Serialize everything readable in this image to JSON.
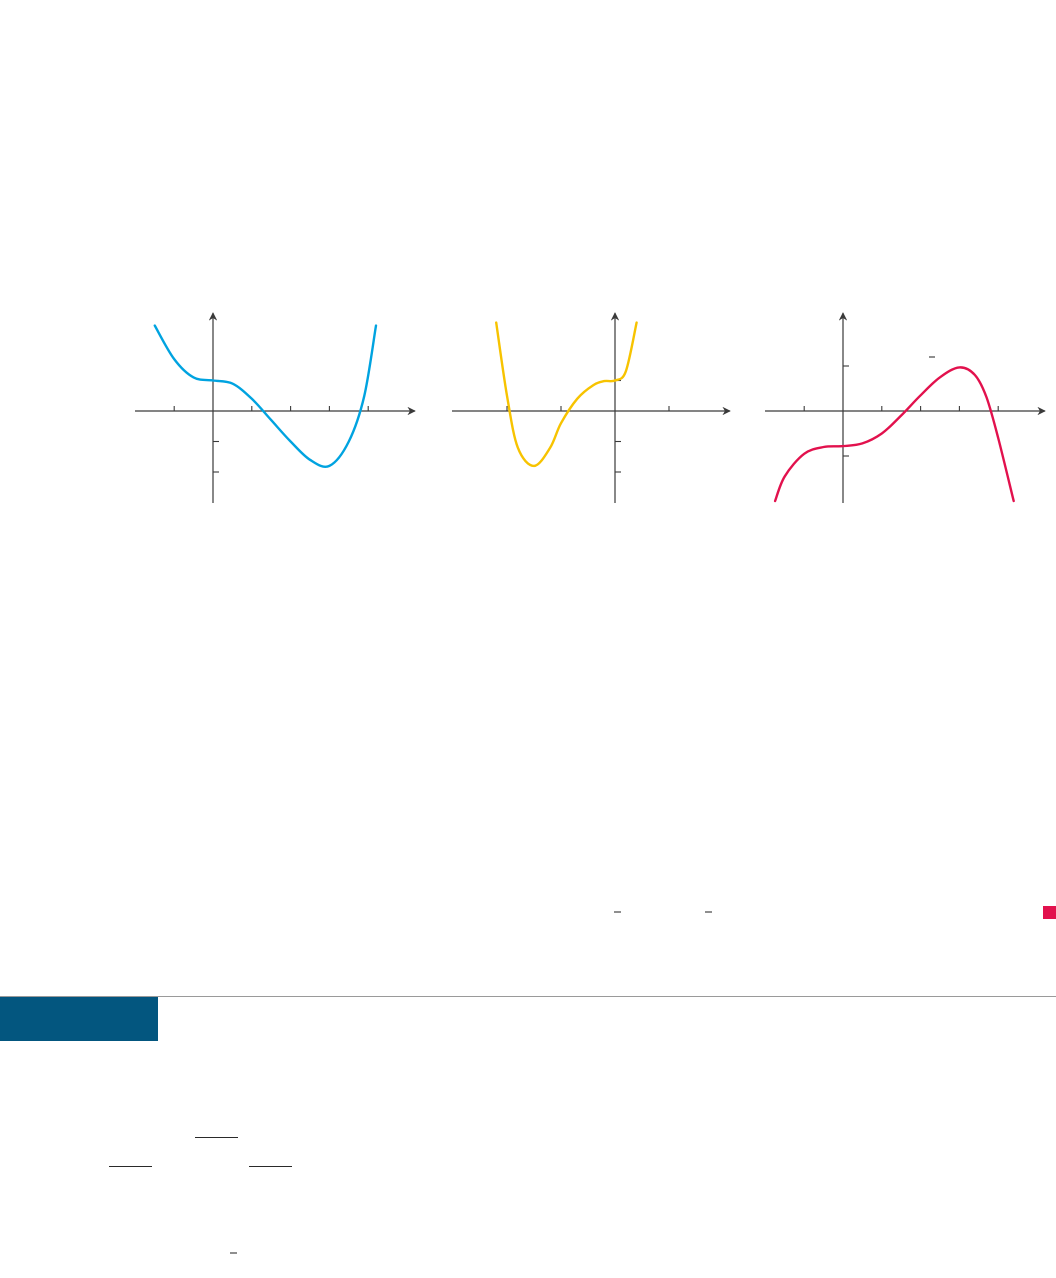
{
  "chart_data": [
    {
      "type": "line",
      "title": "",
      "xlabel": "",
      "ylabel": "",
      "x_ticks": [
        -1,
        1,
        2,
        3,
        4
      ],
      "y_ticks": [
        -2,
        -1,
        1
      ],
      "xlim": [
        -2,
        5
      ],
      "ylim": [
        -3,
        2
      ],
      "grid": false,
      "series": [
        {
          "color": "#00a3e0",
          "x": [
            -1.5,
            -1,
            -0.5,
            0,
            0.5,
            1,
            1.5,
            2,
            2.5,
            3,
            3.5,
            3.9,
            4.2
          ],
          "y": [
            2.8,
            1.7,
            1.1,
            1.0,
            0.9,
            0.4,
            -0.3,
            -1.0,
            -1.6,
            -1.8,
            -1.0,
            0.5,
            2.8
          ]
        }
      ]
    },
    {
      "type": "line",
      "title": "",
      "xlabel": "",
      "ylabel": "",
      "x_ticks": [
        -2,
        -1,
        1
      ],
      "y_ticks": [
        -2,
        -1,
        1
      ],
      "xlim": [
        -3,
        2
      ],
      "ylim": [
        -3,
        2
      ],
      "grid": false,
      "series": [
        {
          "color": "#f7c300",
          "x": [
            -2.2,
            -2.0,
            -1.8,
            -1.5,
            -1.2,
            -1.0,
            -0.7,
            -0.4,
            -0.2,
            0,
            0.2,
            0.4
          ],
          "y": [
            2.9,
            0.5,
            -1.2,
            -1.8,
            -1.2,
            -0.4,
            0.4,
            0.85,
            0.98,
            1.0,
            1.3,
            2.9
          ]
        }
      ]
    },
    {
      "type": "line",
      "title": "",
      "xlabel": "",
      "ylabel": "",
      "x_ticks": [
        -1,
        1,
        2,
        3,
        4
      ],
      "y_ticks": [
        -1,
        1
      ],
      "xlim": [
        -2,
        5
      ],
      "ylim": [
        -2,
        2
      ],
      "grid": false,
      "series": [
        {
          "color": "#e2114d",
          "x": [
            -1.75,
            -1.5,
            -1.0,
            -0.5,
            0,
            0.5,
            1,
            1.5,
            2,
            2.5,
            3,
            3.4,
            3.7,
            4.0,
            4.4
          ],
          "y": [
            -2.0,
            -1.45,
            -0.95,
            -0.8,
            -0.78,
            -0.72,
            -0.5,
            -0.1,
            0.35,
            0.75,
            0.97,
            0.8,
            0.3,
            -0.6,
            -2.0
          ]
        }
      ]
    }
  ],
  "page": {
    "marker_color": "#e2114d",
    "section_tab_color": "#03567f"
  }
}
